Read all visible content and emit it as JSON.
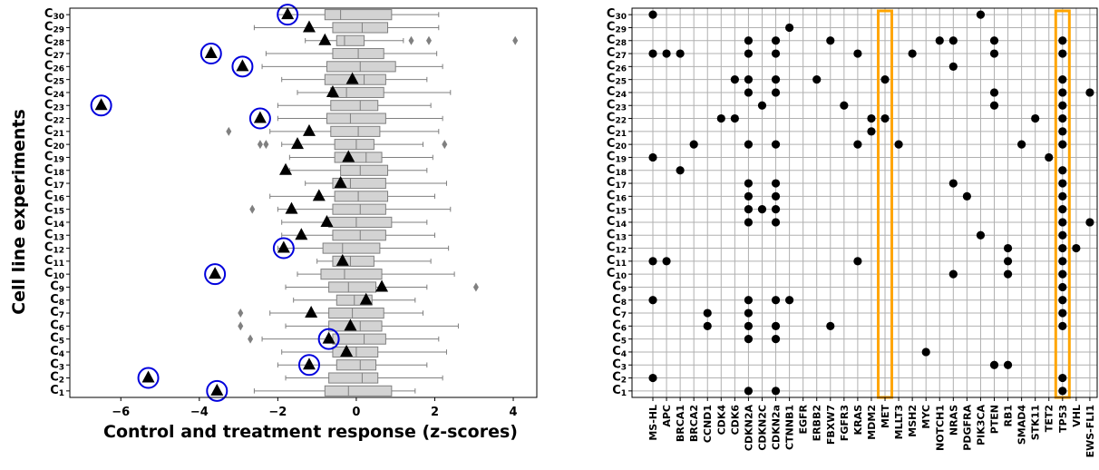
{
  "chart_data": [
    {
      "type": "box",
      "xlabel": "Control and treatment response (z-scores)",
      "ylabel": "Cell line experiments",
      "xlim": [
        -7.3,
        4.6
      ],
      "xticks": [
        -6,
        -4,
        -2,
        0,
        2,
        4
      ],
      "xtick_labels": [
        "−6",
        "−4",
        "−2",
        "0",
        "2",
        "4"
      ],
      "grid": false,
      "categories": [
        "C1",
        "C2",
        "C3",
        "C4",
        "C5",
        "C6",
        "C7",
        "C8",
        "C9",
        "C10",
        "C11",
        "C12",
        "C13",
        "C14",
        "C15",
        "C16",
        "C17",
        "C18",
        "C19",
        "C20",
        "C21",
        "C22",
        "C23",
        "C24",
        "C25",
        "C26",
        "C27",
        "C28",
        "C29",
        "C30"
      ],
      "boxes": [
        {
          "wl": -2.6,
          "q1": -0.8,
          "med": -0.2,
          "q3": 0.9,
          "wh": 1.5,
          "out": []
        },
        {
          "wl": -1.8,
          "q1": -0.7,
          "med": 0.15,
          "q3": 0.55,
          "wh": 2.2,
          "out": []
        },
        {
          "wl": -2.0,
          "q1": -0.5,
          "med": 0.1,
          "q3": 0.5,
          "wh": 1.8,
          "out": []
        },
        {
          "wl": -1.9,
          "q1": -0.6,
          "med": 0.0,
          "q3": 0.55,
          "wh": 2.3,
          "out": []
        },
        {
          "wl": -2.4,
          "q1": -0.6,
          "med": 0.2,
          "q3": 0.75,
          "wh": 2.1,
          "out": [
            -2.7
          ]
        },
        {
          "wl": -1.8,
          "q1": -0.7,
          "med": 0.1,
          "q3": 0.65,
          "wh": 2.6,
          "out": [
            -2.95
          ]
        },
        {
          "wl": -2.2,
          "q1": -0.7,
          "med": -0.1,
          "q3": 0.7,
          "wh": 1.7,
          "out": [
            -2.95
          ]
        },
        {
          "wl": -1.6,
          "q1": -0.5,
          "med": -0.05,
          "q3": 0.4,
          "wh": 1.5,
          "out": []
        },
        {
          "wl": -1.8,
          "q1": -0.7,
          "med": -0.2,
          "q3": 0.5,
          "wh": 1.8,
          "out": [
            3.05
          ]
        },
        {
          "wl": -1.5,
          "q1": -0.9,
          "med": -0.3,
          "q3": 0.65,
          "wh": 2.5,
          "out": []
        },
        {
          "wl": -1.0,
          "q1": -0.6,
          "med": -0.15,
          "q3": 0.45,
          "wh": 1.9,
          "out": []
        },
        {
          "wl": -2.0,
          "q1": -0.85,
          "med": -0.35,
          "q3": 0.6,
          "wh": 2.35,
          "out": []
        },
        {
          "wl": -1.9,
          "q1": -0.6,
          "med": 0.1,
          "q3": 0.75,
          "wh": 2.0,
          "out": []
        },
        {
          "wl": -1.9,
          "q1": -0.7,
          "med": 0.0,
          "q3": 0.9,
          "wh": 1.8,
          "out": []
        },
        {
          "wl": -2.0,
          "q1": -0.6,
          "med": 0.1,
          "q3": 0.75,
          "wh": 2.4,
          "out": [
            -2.65
          ]
        },
        {
          "wl": -2.2,
          "q1": -0.55,
          "med": 0.05,
          "q3": 0.8,
          "wh": 2.0,
          "out": []
        },
        {
          "wl": -1.3,
          "q1": -0.6,
          "med": -0.15,
          "q3": 0.75,
          "wh": 2.3,
          "out": []
        },
        {
          "wl": -1.7,
          "q1": -0.4,
          "med": 0.1,
          "q3": 0.8,
          "wh": 1.8,
          "out": []
        },
        {
          "wl": -1.7,
          "q1": -0.55,
          "med": 0.25,
          "q3": 0.65,
          "wh": 1.95,
          "out": []
        },
        {
          "wl": -1.9,
          "q1": -0.55,
          "med": 0.0,
          "q3": 0.45,
          "wh": 1.7,
          "out": [
            -2.45,
            -2.3,
            2.25
          ]
        },
        {
          "wl": -2.2,
          "q1": -0.65,
          "med": 0.05,
          "q3": 0.6,
          "wh": 2.1,
          "out": [
            -3.25
          ]
        },
        {
          "wl": -2.0,
          "q1": -0.75,
          "med": -0.15,
          "q3": 0.75,
          "wh": 2.2,
          "out": []
        },
        {
          "wl": -2.0,
          "q1": -0.65,
          "med": 0.1,
          "q3": 0.55,
          "wh": 1.9,
          "out": []
        },
        {
          "wl": -1.5,
          "q1": -0.65,
          "med": -0.25,
          "q3": 0.7,
          "wh": 2.4,
          "out": []
        },
        {
          "wl": -1.9,
          "q1": -0.8,
          "med": 0.2,
          "q3": 0.75,
          "wh": 1.8,
          "out": []
        },
        {
          "wl": -2.4,
          "q1": -0.75,
          "med": 0.1,
          "q3": 1.0,
          "wh": 2.2,
          "out": []
        },
        {
          "wl": -2.3,
          "q1": -0.6,
          "med": 0.05,
          "q3": 0.7,
          "wh": 2.05,
          "out": []
        },
        {
          "wl": -1.3,
          "q1": -0.5,
          "med": -0.3,
          "q3": 0.2,
          "wh": 1.2,
          "out": [
            1.4,
            1.85,
            4.05
          ]
        },
        {
          "wl": -2.6,
          "q1": -0.6,
          "med": 0.15,
          "q3": 0.8,
          "wh": 2.1,
          "out": []
        },
        {
          "wl": -2.0,
          "q1": -0.8,
          "med": -0.4,
          "q3": 0.9,
          "wh": 2.1,
          "out": []
        }
      ],
      "markers": [
        -3.55,
        -5.3,
        -1.2,
        -0.25,
        -0.7,
        -0.15,
        -1.15,
        0.25,
        0.65,
        -3.6,
        -0.35,
        -1.85,
        -1.4,
        -0.75,
        -1.65,
        -0.95,
        -0.4,
        -1.8,
        -0.2,
        -1.5,
        -1.2,
        -2.45,
        -6.5,
        -0.6,
        -0.1,
        -2.9,
        -3.7,
        -0.8,
        -1.2,
        -1.75
      ],
      "circled": [
        1,
        2,
        3,
        5,
        10,
        12,
        22,
        23,
        26,
        27,
        30
      ],
      "colors": {
        "box": "#d3d3d3",
        "box_edge": "#7f7f7f",
        "outlier": "#808080",
        "marker": "#000000",
        "circle": "#0000dd"
      }
    },
    {
      "type": "heatmap",
      "categories": [
        "MS-HL",
        "APC",
        "BRCA1",
        "BRCA2",
        "CCND1",
        "CDK4",
        "CDK6",
        "CDKN2A",
        "CDKN2C",
        "CDKN2a",
        "CTNNB1",
        "EGFR",
        "ERBB2",
        "FBXW7",
        "FGFR3",
        "KRAS",
        "MDM2",
        "MET",
        "MLLT3",
        "MSH2",
        "MYC",
        "NOTCH1",
        "NRAS",
        "PDGFRA",
        "PIK3CA",
        "PTEN",
        "RB1",
        "SMAD4",
        "STK11",
        "TET2",
        "TP53",
        "VHL",
        "EWS-FLI1"
      ],
      "rows": [
        "C1",
        "C2",
        "C3",
        "C4",
        "C5",
        "C6",
        "C7",
        "C8",
        "C9",
        "C10",
        "C11",
        "C12",
        "C13",
        "C14",
        "C15",
        "C16",
        "C17",
        "C18",
        "C19",
        "C20",
        "C21",
        "C22",
        "C23",
        "C24",
        "C25",
        "C26",
        "C27",
        "C28",
        "C29",
        "C30"
      ],
      "points": [
        [
          "C30",
          "MS-HL"
        ],
        [
          "C30",
          "PIK3CA"
        ],
        [
          "C29",
          "CTNNB1"
        ],
        [
          "C28",
          "CDKN2A"
        ],
        [
          "C28",
          "CDKN2a"
        ],
        [
          "C28",
          "FBXW7"
        ],
        [
          "C28",
          "NOTCH1"
        ],
        [
          "C28",
          "NRAS"
        ],
        [
          "C28",
          "PTEN"
        ],
        [
          "C28",
          "TP53"
        ],
        [
          "C27",
          "MS-HL"
        ],
        [
          "C27",
          "APC"
        ],
        [
          "C27",
          "BRCA1"
        ],
        [
          "C27",
          "CDKN2A"
        ],
        [
          "C27",
          "CDKN2a"
        ],
        [
          "C27",
          "KRAS"
        ],
        [
          "C27",
          "MSH2"
        ],
        [
          "C27",
          "PTEN"
        ],
        [
          "C27",
          "TP53"
        ],
        [
          "C26",
          "NRAS"
        ],
        [
          "C25",
          "CDK6"
        ],
        [
          "C25",
          "CDKN2A"
        ],
        [
          "C25",
          "CDKN2a"
        ],
        [
          "C25",
          "ERBB2"
        ],
        [
          "C25",
          "MET"
        ],
        [
          "C25",
          "TP53"
        ],
        [
          "C24",
          "CDKN2A"
        ],
        [
          "C24",
          "CDKN2a"
        ],
        [
          "C24",
          "PTEN"
        ],
        [
          "C24",
          "TP53"
        ],
        [
          "C24",
          "EWS-FLI1"
        ],
        [
          "C23",
          "CDKN2C"
        ],
        [
          "C23",
          "FGFR3"
        ],
        [
          "C23",
          "PTEN"
        ],
        [
          "C23",
          "TP53"
        ],
        [
          "C22",
          "CDK4"
        ],
        [
          "C22",
          "CDK6"
        ],
        [
          "C22",
          "MDM2"
        ],
        [
          "C22",
          "MET"
        ],
        [
          "C22",
          "STK11"
        ],
        [
          "C22",
          "TP53"
        ],
        [
          "C21",
          "MDM2"
        ],
        [
          "C21",
          "TP53"
        ],
        [
          "C20",
          "BRCA2"
        ],
        [
          "C20",
          "CDKN2A"
        ],
        [
          "C20",
          "CDKN2a"
        ],
        [
          "C20",
          "KRAS"
        ],
        [
          "C20",
          "MLLT3"
        ],
        [
          "C20",
          "SMAD4"
        ],
        [
          "C20",
          "TP53"
        ],
        [
          "C19",
          "MS-HL"
        ],
        [
          "C19",
          "TET2"
        ],
        [
          "C18",
          "BRCA1"
        ],
        [
          "C18",
          "TP53"
        ],
        [
          "C17",
          "CDKN2A"
        ],
        [
          "C17",
          "CDKN2a"
        ],
        [
          "C17",
          "NRAS"
        ],
        [
          "C17",
          "TP53"
        ],
        [
          "C16",
          "CDKN2A"
        ],
        [
          "C16",
          "CDKN2a"
        ],
        [
          "C16",
          "PDGFRA"
        ],
        [
          "C16",
          "TP53"
        ],
        [
          "C15",
          "CDKN2A"
        ],
        [
          "C15",
          "CDKN2C"
        ],
        [
          "C15",
          "CDKN2a"
        ],
        [
          "C15",
          "TP53"
        ],
        [
          "C14",
          "CDKN2A"
        ],
        [
          "C14",
          "CDKN2a"
        ],
        [
          "C14",
          "TP53"
        ],
        [
          "C14",
          "EWS-FLI1"
        ],
        [
          "C13",
          "PIK3CA"
        ],
        [
          "C13",
          "TP53"
        ],
        [
          "C12",
          "RB1"
        ],
        [
          "C12",
          "TP53"
        ],
        [
          "C12",
          "VHL"
        ],
        [
          "C11",
          "MS-HL"
        ],
        [
          "C11",
          "APC"
        ],
        [
          "C11",
          "KRAS"
        ],
        [
          "C11",
          "RB1"
        ],
        [
          "C11",
          "TP53"
        ],
        [
          "C10",
          "NRAS"
        ],
        [
          "C10",
          "RB1"
        ],
        [
          "C10",
          "TP53"
        ],
        [
          "C9",
          "TP53"
        ],
        [
          "C8",
          "MS-HL"
        ],
        [
          "C8",
          "CDKN2A"
        ],
        [
          "C8",
          "CDKN2a"
        ],
        [
          "C8",
          "CTNNB1"
        ],
        [
          "C8",
          "TP53"
        ],
        [
          "C7",
          "CCND1"
        ],
        [
          "C7",
          "CDKN2A"
        ],
        [
          "C7",
          "TP53"
        ],
        [
          "C6",
          "CCND1"
        ],
        [
          "C6",
          "CDKN2A"
        ],
        [
          "C6",
          "CDKN2a"
        ],
        [
          "C6",
          "FBXW7"
        ],
        [
          "C6",
          "TP53"
        ],
        [
          "C5",
          "CDKN2A"
        ],
        [
          "C5",
          "CDKN2a"
        ],
        [
          "C4",
          "MYC"
        ],
        [
          "C3",
          "PTEN"
        ],
        [
          "C3",
          "RB1"
        ],
        [
          "C2",
          "MS-HL"
        ],
        [
          "C2",
          "TP53"
        ],
        [
          "C1",
          "CDKN2A"
        ],
        [
          "C1",
          "CDKN2a"
        ],
        [
          "C1",
          "TP53"
        ]
      ],
      "highlighted_columns": [
        "MET",
        "TP53"
      ],
      "grid": true,
      "colors": {
        "dot": "#000000",
        "grid": "#b0b0b0",
        "highlight": "#ffa500"
      }
    }
  ]
}
